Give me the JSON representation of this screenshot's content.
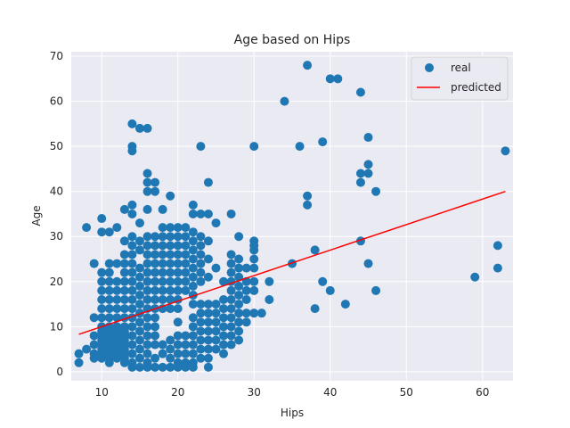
{
  "chart_data": {
    "type": "scatter",
    "title": "Age based on Hips",
    "xlabel": "Hips",
    "ylabel": "Age",
    "xlim": [
      6,
      64
    ],
    "ylim": [
      -2,
      71
    ],
    "xticks": [
      10,
      20,
      30,
      40,
      50,
      60
    ],
    "yticks": [
      0,
      10,
      20,
      30,
      40,
      50,
      60,
      70
    ],
    "grid": true,
    "legend_position": "top-right",
    "colors": {
      "background": "#eaeaf2",
      "grid": "#ffffff",
      "real": "#1f77b4",
      "predicted": "#ff0000"
    },
    "series": [
      {
        "name": "real",
        "kind": "scatter",
        "points": [
          [
            7,
            2
          ],
          [
            7,
            4
          ],
          [
            8,
            5
          ],
          [
            8,
            32
          ],
          [
            9,
            24
          ],
          [
            9,
            12
          ],
          [
            9,
            8
          ],
          [
            9,
            6
          ],
          [
            9,
            4
          ],
          [
            9,
            3
          ],
          [
            10,
            34
          ],
          [
            10,
            31
          ],
          [
            10,
            22
          ],
          [
            10,
            20
          ],
          [
            10,
            18
          ],
          [
            10,
            16
          ],
          [
            10,
            14
          ],
          [
            10,
            12
          ],
          [
            10,
            10
          ],
          [
            10,
            9
          ],
          [
            10,
            8
          ],
          [
            10,
            7
          ],
          [
            10,
            6
          ],
          [
            10,
            5
          ],
          [
            10,
            4
          ],
          [
            10,
            3
          ],
          [
            11,
            31
          ],
          [
            11,
            24
          ],
          [
            11,
            22
          ],
          [
            11,
            20
          ],
          [
            11,
            18
          ],
          [
            11,
            16
          ],
          [
            11,
            14
          ],
          [
            11,
            12
          ],
          [
            11,
            10
          ],
          [
            11,
            9
          ],
          [
            11,
            8
          ],
          [
            11,
            7
          ],
          [
            11,
            6
          ],
          [
            11,
            5
          ],
          [
            11,
            4
          ],
          [
            11,
            3
          ],
          [
            11,
            2
          ],
          [
            12,
            32
          ],
          [
            12,
            24
          ],
          [
            12,
            20
          ],
          [
            12,
            18
          ],
          [
            12,
            16
          ],
          [
            12,
            14
          ],
          [
            12,
            12
          ],
          [
            12,
            10
          ],
          [
            12,
            9
          ],
          [
            12,
            8
          ],
          [
            12,
            7
          ],
          [
            12,
            6
          ],
          [
            12,
            5
          ],
          [
            12,
            4
          ],
          [
            12,
            3
          ],
          [
            13,
            36
          ],
          [
            13,
            29
          ],
          [
            13,
            26
          ],
          [
            13,
            24
          ],
          [
            13,
            22
          ],
          [
            13,
            20
          ],
          [
            13,
            18
          ],
          [
            13,
            16
          ],
          [
            13,
            14
          ],
          [
            13,
            12
          ],
          [
            13,
            10
          ],
          [
            13,
            9
          ],
          [
            13,
            8
          ],
          [
            13,
            7
          ],
          [
            13,
            6
          ],
          [
            13,
            5
          ],
          [
            13,
            4
          ],
          [
            13,
            3
          ],
          [
            13,
            2
          ],
          [
            14,
            55
          ],
          [
            14,
            50
          ],
          [
            14,
            49
          ],
          [
            14,
            37
          ],
          [
            14,
            35
          ],
          [
            14,
            30
          ],
          [
            14,
            28
          ],
          [
            14,
            26
          ],
          [
            14,
            24
          ],
          [
            14,
            22
          ],
          [
            14,
            20
          ],
          [
            14,
            18
          ],
          [
            14,
            16
          ],
          [
            14,
            14
          ],
          [
            14,
            12
          ],
          [
            14,
            10
          ],
          [
            14,
            8
          ],
          [
            14,
            6
          ],
          [
            14,
            4
          ],
          [
            14,
            2
          ],
          [
            14,
            1
          ],
          [
            15,
            54
          ],
          [
            15,
            33
          ],
          [
            15,
            29
          ],
          [
            15,
            27
          ],
          [
            15,
            23
          ],
          [
            15,
            21
          ],
          [
            15,
            19
          ],
          [
            15,
            17
          ],
          [
            15,
            15
          ],
          [
            15,
            13
          ],
          [
            15,
            11
          ],
          [
            15,
            9
          ],
          [
            15,
            7
          ],
          [
            15,
            5
          ],
          [
            15,
            3
          ],
          [
            15,
            1
          ],
          [
            16,
            54
          ],
          [
            16,
            44
          ],
          [
            16,
            42
          ],
          [
            16,
            40
          ],
          [
            16,
            36
          ],
          [
            16,
            30
          ],
          [
            16,
            28
          ],
          [
            16,
            26
          ],
          [
            16,
            24
          ],
          [
            16,
            22
          ],
          [
            16,
            20
          ],
          [
            16,
            18
          ],
          [
            16,
            16
          ],
          [
            16,
            14
          ],
          [
            16,
            12
          ],
          [
            16,
            10
          ],
          [
            16,
            8
          ],
          [
            16,
            6
          ],
          [
            16,
            4
          ],
          [
            16,
            2
          ],
          [
            16,
            1
          ],
          [
            17,
            42
          ],
          [
            17,
            40
          ],
          [
            17,
            30
          ],
          [
            17,
            28
          ],
          [
            17,
            26
          ],
          [
            17,
            24
          ],
          [
            17,
            22
          ],
          [
            17,
            20
          ],
          [
            17,
            18
          ],
          [
            17,
            16
          ],
          [
            17,
            14
          ],
          [
            17,
            12
          ],
          [
            17,
            10
          ],
          [
            17,
            8
          ],
          [
            17,
            6
          ],
          [
            17,
            3
          ],
          [
            17,
            1
          ],
          [
            18,
            36
          ],
          [
            18,
            32
          ],
          [
            18,
            30
          ],
          [
            18,
            28
          ],
          [
            18,
            26
          ],
          [
            18,
            24
          ],
          [
            18,
            22
          ],
          [
            18,
            20
          ],
          [
            18,
            18
          ],
          [
            18,
            16
          ],
          [
            18,
            14
          ],
          [
            18,
            6
          ],
          [
            18,
            4
          ],
          [
            18,
            1
          ],
          [
            19,
            39
          ],
          [
            19,
            32
          ],
          [
            19,
            30
          ],
          [
            19,
            28
          ],
          [
            19,
            26
          ],
          [
            19,
            24
          ],
          [
            19,
            22
          ],
          [
            19,
            20
          ],
          [
            19,
            18
          ],
          [
            19,
            16
          ],
          [
            19,
            14
          ],
          [
            19,
            7
          ],
          [
            19,
            5
          ],
          [
            19,
            3
          ],
          [
            19,
            1
          ],
          [
            20,
            32
          ],
          [
            20,
            30
          ],
          [
            20,
            28
          ],
          [
            20,
            26
          ],
          [
            20,
            24
          ],
          [
            20,
            22
          ],
          [
            20,
            20
          ],
          [
            20,
            18
          ],
          [
            20,
            16
          ],
          [
            20,
            14
          ],
          [
            20,
            11
          ],
          [
            20,
            8
          ],
          [
            20,
            6
          ],
          [
            20,
            4
          ],
          [
            20,
            2
          ],
          [
            20,
            1
          ],
          [
            21,
            32
          ],
          [
            21,
            30
          ],
          [
            21,
            28
          ],
          [
            21,
            26
          ],
          [
            21,
            24
          ],
          [
            21,
            22
          ],
          [
            21,
            20
          ],
          [
            21,
            18
          ],
          [
            21,
            8
          ],
          [
            21,
            6
          ],
          [
            21,
            4
          ],
          [
            21,
            2
          ],
          [
            21,
            1
          ],
          [
            22,
            37
          ],
          [
            22,
            35
          ],
          [
            22,
            31
          ],
          [
            22,
            29
          ],
          [
            22,
            27
          ],
          [
            22,
            25
          ],
          [
            22,
            23
          ],
          [
            22,
            21
          ],
          [
            22,
            19
          ],
          [
            22,
            17
          ],
          [
            22,
            15
          ],
          [
            22,
            12
          ],
          [
            22,
            10
          ],
          [
            22,
            8
          ],
          [
            22,
            6
          ],
          [
            22,
            4
          ],
          [
            22,
            2
          ],
          [
            22,
            1
          ],
          [
            23,
            50
          ],
          [
            23,
            35
          ],
          [
            23,
            30
          ],
          [
            23,
            28
          ],
          [
            23,
            26
          ],
          [
            23,
            24
          ],
          [
            23,
            22
          ],
          [
            23,
            20
          ],
          [
            23,
            15
          ],
          [
            23,
            13
          ],
          [
            23,
            11
          ],
          [
            23,
            9
          ],
          [
            23,
            7
          ],
          [
            23,
            5
          ],
          [
            23,
            3
          ],
          [
            24,
            42
          ],
          [
            24,
            35
          ],
          [
            24,
            29
          ],
          [
            24,
            25
          ],
          [
            24,
            21
          ],
          [
            24,
            15
          ],
          [
            24,
            13
          ],
          [
            24,
            11
          ],
          [
            24,
            9
          ],
          [
            24,
            7
          ],
          [
            24,
            5
          ],
          [
            24,
            3
          ],
          [
            24,
            1
          ],
          [
            25,
            33
          ],
          [
            25,
            23
          ],
          [
            25,
            15
          ],
          [
            25,
            13
          ],
          [
            25,
            11
          ],
          [
            25,
            9
          ],
          [
            25,
            7
          ],
          [
            25,
            5
          ],
          [
            26,
            20
          ],
          [
            26,
            16
          ],
          [
            26,
            14
          ],
          [
            26,
            12
          ],
          [
            26,
            10
          ],
          [
            26,
            8
          ],
          [
            26,
            6
          ],
          [
            26,
            4
          ],
          [
            27,
            35
          ],
          [
            27,
            26
          ],
          [
            27,
            24
          ],
          [
            27,
            22
          ],
          [
            27,
            20
          ],
          [
            27,
            18
          ],
          [
            27,
            16
          ],
          [
            27,
            14
          ],
          [
            27,
            12
          ],
          [
            27,
            10
          ],
          [
            27,
            8
          ],
          [
            27,
            6
          ],
          [
            28,
            30
          ],
          [
            28,
            25
          ],
          [
            28,
            23
          ],
          [
            28,
            21
          ],
          [
            28,
            19
          ],
          [
            28,
            17
          ],
          [
            28,
            15
          ],
          [
            28,
            13
          ],
          [
            28,
            11
          ],
          [
            28,
            9
          ],
          [
            28,
            7
          ],
          [
            29,
            23
          ],
          [
            29,
            20
          ],
          [
            29,
            18
          ],
          [
            29,
            16
          ],
          [
            29,
            13
          ],
          [
            29,
            11
          ],
          [
            30,
            29
          ],
          [
            30,
            28
          ],
          [
            30,
            27
          ],
          [
            30,
            25
          ],
          [
            30,
            23
          ],
          [
            30,
            20
          ],
          [
            30,
            18
          ],
          [
            30,
            13
          ],
          [
            30,
            50
          ],
          [
            31,
            13
          ],
          [
            32,
            16
          ],
          [
            32,
            20
          ],
          [
            34,
            60
          ],
          [
            35,
            24
          ],
          [
            36,
            50
          ],
          [
            37,
            68
          ],
          [
            37,
            39
          ],
          [
            37,
            37
          ],
          [
            38,
            27
          ],
          [
            38,
            14
          ],
          [
            39,
            51
          ],
          [
            39,
            20
          ],
          [
            40,
            65
          ],
          [
            40,
            18
          ],
          [
            41,
            65
          ],
          [
            42,
            15
          ],
          [
            44,
            62
          ],
          [
            44,
            44
          ],
          [
            44,
            42
          ],
          [
            44,
            29
          ],
          [
            45,
            52
          ],
          [
            45,
            46
          ],
          [
            45,
            44
          ],
          [
            45,
            24
          ],
          [
            46,
            40
          ],
          [
            46,
            18
          ],
          [
            59,
            21
          ],
          [
            62,
            28
          ],
          [
            62,
            23
          ],
          [
            63,
            49
          ]
        ]
      },
      {
        "name": "predicted",
        "kind": "line",
        "points": [
          [
            7,
            8.3
          ],
          [
            63,
            40
          ]
        ]
      }
    ]
  }
}
